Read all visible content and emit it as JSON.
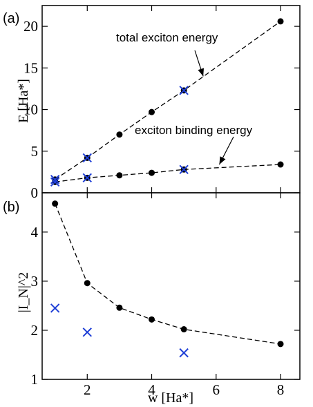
{
  "chart_data": [
    {
      "type": "scatter",
      "panel_label": "(a)",
      "ylabel": "E [Ha*]",
      "xlabel": "",
      "xlim": [
        0.6,
        8.6
      ],
      "ylim": [
        0,
        22.5
      ],
      "x_ticks": [
        2,
        4,
        6,
        8
      ],
      "y_ticks": [
        0,
        5,
        10,
        15,
        20
      ],
      "grid": false,
      "series": [
        {
          "name": "total exciton energy",
          "style": "dashed line with filled circles",
          "color": "#000000",
          "x": [
            1,
            2,
            3,
            4,
            5,
            8
          ],
          "y": [
            1.6,
            4.2,
            7.0,
            9.7,
            12.3,
            20.6
          ]
        },
        {
          "name": "exciton binding energy",
          "style": "dashed line with filled circles",
          "color": "#000000",
          "x": [
            1,
            2,
            3,
            4,
            5,
            8
          ],
          "y": [
            1.3,
            1.8,
            2.1,
            2.4,
            2.8,
            3.4
          ]
        },
        {
          "style": "cross markers",
          "color": "#1f3fd6",
          "x": [
            1,
            1,
            2,
            2,
            5,
            5
          ],
          "y": [
            1.6,
            1.3,
            4.2,
            1.8,
            12.3,
            2.8
          ]
        }
      ],
      "annotations": [
        {
          "text": "total exciton energy",
          "points_to": [
            5.6,
            14.0
          ]
        },
        {
          "text": "exciton binding energy",
          "points_to": [
            6.1,
            3.4
          ]
        }
      ]
    },
    {
      "type": "scatter",
      "panel_label": "(b)",
      "ylabel": "|I_N|^2",
      "xlabel": "w [Ha*]",
      "xlim": [
        0.6,
        8.6
      ],
      "ylim": [
        1,
        4.8
      ],
      "x_ticks": [
        2,
        4,
        6,
        8
      ],
      "y_ticks": [
        1,
        2,
        3,
        4
      ],
      "grid": false,
      "series": [
        {
          "style": "dashed line with filled circles",
          "color": "#000000",
          "x": [
            1,
            2,
            3,
            4,
            5,
            8
          ],
          "y": [
            4.58,
            2.96,
            2.46,
            2.22,
            2.02,
            1.72
          ]
        },
        {
          "style": "cross markers",
          "color": "#1f3fd6",
          "x": [
            1,
            2,
            5
          ],
          "y": [
            2.45,
            1.96,
            1.54
          ]
        }
      ]
    }
  ]
}
